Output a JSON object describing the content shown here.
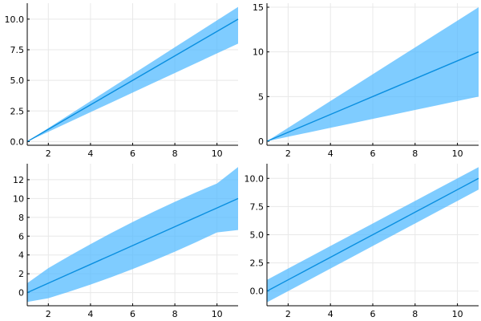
{
  "chart_data": [
    {
      "type": "line",
      "grid": true,
      "legend": "none",
      "colors": {
        "line": "#0a8fe0",
        "band": "#4db8ff"
      },
      "xlim": [
        1,
        11
      ],
      "ylim": [
        -0.3,
        11.3
      ],
      "x_ticks": [
        "2",
        "4",
        "6",
        "8",
        "10"
      ],
      "y_ticks": [
        "0.0",
        "2.5",
        "5.0",
        "7.5",
        "10.0"
      ],
      "x": [
        1,
        2,
        3,
        4,
        5,
        6,
        7,
        8,
        9,
        10,
        11
      ],
      "series": [
        {
          "values": [
            0,
            1,
            2,
            3,
            4,
            5,
            6,
            7,
            8,
            9,
            10
          ]
        }
      ],
      "band": {
        "lower": [
          0,
          0.8,
          1.6,
          2.4,
          3.2,
          4.0,
          4.8,
          5.6,
          6.4,
          7.2,
          8.0
        ],
        "upper": [
          0,
          1.1,
          2.2,
          3.3,
          4.4,
          5.5,
          6.6,
          7.7,
          8.8,
          9.9,
          11.0
        ]
      }
    },
    {
      "type": "line",
      "grid": true,
      "legend": "none",
      "colors": {
        "line": "#0a8fe0",
        "band": "#4db8ff"
      },
      "xlim": [
        1,
        11
      ],
      "ylim": [
        -0.45,
        15.45
      ],
      "x_ticks": [
        "2",
        "4",
        "6",
        "8",
        "10"
      ],
      "y_ticks": [
        "0",
        "5",
        "10",
        "15"
      ],
      "x": [
        1,
        2,
        3,
        4,
        5,
        6,
        7,
        8,
        9,
        10,
        11
      ],
      "series": [
        {
          "values": [
            0,
            1,
            2,
            3,
            4,
            5,
            6,
            7,
            8,
            9,
            10
          ]
        }
      ],
      "band": {
        "lower": [
          0,
          0.5,
          1.0,
          1.5,
          2.0,
          2.5,
          3.0,
          3.5,
          4.0,
          4.5,
          5.0
        ],
        "upper": [
          0,
          1.5,
          3.0,
          4.5,
          6.0,
          7.5,
          9.0,
          10.5,
          12.0,
          13.5,
          15.0
        ]
      }
    },
    {
      "type": "line",
      "grid": true,
      "legend": "none",
      "colors": {
        "line": "#0a8fe0",
        "band": "#4db8ff"
      },
      "xlim": [
        1,
        11
      ],
      "ylim": [
        -1.4,
        13.7
      ],
      "x_ticks": [
        "2",
        "4",
        "6",
        "8",
        "10"
      ],
      "y_ticks": [
        "0",
        "2",
        "4",
        "6",
        "8",
        "10",
        "12"
      ],
      "x": [
        1,
        2,
        3,
        4,
        5,
        6,
        7,
        8,
        9,
        10,
        11
      ],
      "series": [
        {
          "values": [
            0,
            1,
            2,
            3,
            4,
            5,
            6,
            7,
            8,
            9,
            10
          ]
        }
      ],
      "band": {
        "lower": [
          -1.0,
          -0.6,
          0.1,
          0.85,
          1.65,
          2.5,
          3.4,
          4.35,
          5.35,
          6.4,
          6.65
        ],
        "upper": [
          1.0,
          2.6,
          3.9,
          5.15,
          6.35,
          7.5,
          8.6,
          9.65,
          10.65,
          11.6,
          13.35
        ]
      }
    },
    {
      "type": "line",
      "grid": true,
      "legend": "none",
      "colors": {
        "line": "#0a8fe0",
        "band": "#4db8ff"
      },
      "xlim": [
        1,
        11
      ],
      "ylim": [
        -1.3,
        11.3
      ],
      "x_ticks": [
        "2",
        "4",
        "6",
        "8",
        "10"
      ],
      "y_ticks": [
        "0.0",
        "2.5",
        "5.0",
        "7.5",
        "10.0"
      ],
      "x": [
        1,
        2,
        3,
        4,
        5,
        6,
        7,
        8,
        9,
        10,
        11
      ],
      "series": [
        {
          "values": [
            0,
            1,
            2,
            3,
            4,
            5,
            6,
            7,
            8,
            9,
            10
          ]
        }
      ],
      "band": {
        "lower": [
          -1,
          0,
          1,
          2,
          3,
          4,
          5,
          6,
          7,
          8,
          9
        ],
        "upper": [
          1,
          2,
          3,
          4,
          5,
          6,
          7,
          8,
          9,
          10,
          11
        ]
      }
    }
  ]
}
